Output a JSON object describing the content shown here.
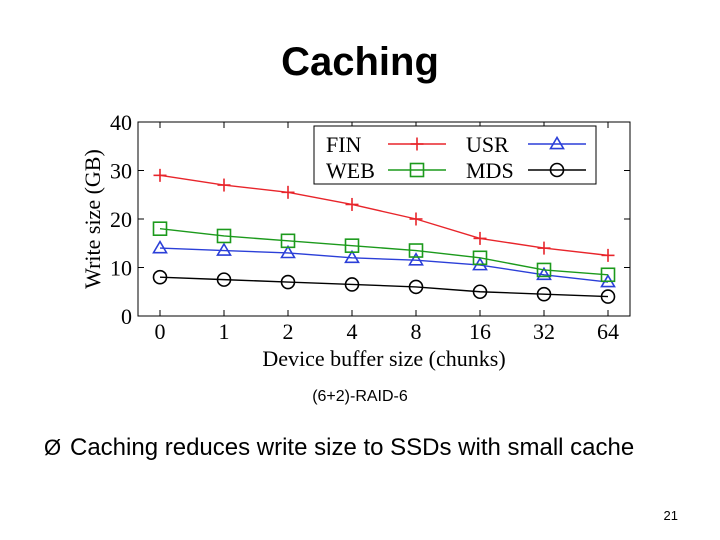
{
  "slide": {
    "title": "Caching",
    "caption": "(6+2)-RAID-6",
    "bullet_marker": "Ø",
    "bullet_text": "Caching reduces write size to SSDs with small cache",
    "page_number": "21"
  },
  "chart_data": {
    "type": "line",
    "categories": [
      "0",
      "1",
      "2",
      "4",
      "8",
      "16",
      "32",
      "64"
    ],
    "xlabel": "Device buffer size (chunks)",
    "ylabel": "Write size (GB)",
    "ylim": [
      0,
      40
    ],
    "yticks": [
      0,
      10,
      20,
      30,
      40
    ],
    "grid": false,
    "legend_position": "top-right",
    "series": [
      {
        "name": "FIN",
        "color": "#e8252b",
        "marker": "plus",
        "values": [
          29,
          27,
          25.5,
          23,
          20,
          16,
          14,
          12.5
        ]
      },
      {
        "name": "USR",
        "color": "#2b3fd8",
        "marker": "triangle",
        "values": [
          14,
          13.5,
          13,
          12,
          11.5,
          10.5,
          8.5,
          7
        ]
      },
      {
        "name": "WEB",
        "color": "#1c9a1c",
        "marker": "square",
        "values": [
          18,
          16.5,
          15.5,
          14.5,
          13.5,
          12,
          9.5,
          8.5
        ]
      },
      {
        "name": "MDS",
        "color": "#000000",
        "marker": "circle",
        "values": [
          8,
          7.5,
          7,
          6.5,
          6,
          5,
          4.5,
          4
        ]
      }
    ]
  }
}
